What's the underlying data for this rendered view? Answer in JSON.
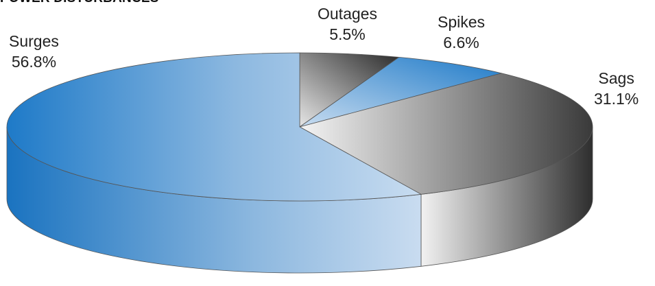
{
  "title": "POWER DISTURBANCES",
  "colors": {
    "surges": "#1e7ac8",
    "surges_light": "#c8dcf0",
    "grey_dark": "#3a3a3a",
    "grey_light": "#f2f2f2"
  },
  "chart_data": {
    "type": "pie",
    "title": "POWER DISTURBANCES",
    "style": "3d-tilted",
    "slices": [
      {
        "label": "Outages",
        "value": 5.5,
        "display": "5.5%",
        "color": "grey"
      },
      {
        "label": "Spikes",
        "value": 6.6,
        "display": "6.6%",
        "color": "blue"
      },
      {
        "label": "Sags",
        "value": 31.1,
        "display": "31.1%",
        "color": "grey"
      },
      {
        "label": "Surges",
        "value": 56.8,
        "display": "56.8%",
        "color": "blue"
      }
    ]
  }
}
